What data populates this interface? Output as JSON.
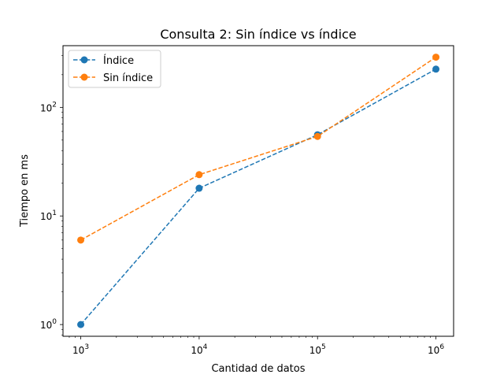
{
  "chart_data": {
    "type": "line",
    "title": "Consulta 2: Sin índice vs índice",
    "xlabel": "Cantidad de datos",
    "ylabel": "Tiempo en ms",
    "xscale": "log",
    "yscale": "log",
    "xlim": [
      708,
      1410000
    ],
    "ylim": [
      0.78,
      370
    ],
    "x_ticks": [
      1000,
      10000,
      100000,
      1000000
    ],
    "x_tick_labels": [
      {
        "base": "10",
        "exp": "3"
      },
      {
        "base": "10",
        "exp": "4"
      },
      {
        "base": "10",
        "exp": "5"
      },
      {
        "base": "10",
        "exp": "6"
      }
    ],
    "y_ticks": [
      1,
      10,
      100
    ],
    "y_tick_labels": [
      {
        "base": "10",
        "exp": "0"
      },
      {
        "base": "10",
        "exp": "1"
      },
      {
        "base": "10",
        "exp": "2"
      }
    ],
    "grid": false,
    "legend_position": "top-left",
    "x": [
      1000,
      10000,
      100000,
      1000000
    ],
    "series": [
      {
        "name": "Índice",
        "values": [
          1.0,
          18.0,
          56.0,
          225.0
        ],
        "color": "#1f77b4",
        "line_style": "dashed",
        "marker": "circle"
      },
      {
        "name": "Sin índice",
        "values": [
          6.0,
          24.0,
          54.0,
          290.0
        ],
        "color": "#ff7f0e",
        "line_style": "dashed",
        "marker": "circle"
      }
    ]
  }
}
